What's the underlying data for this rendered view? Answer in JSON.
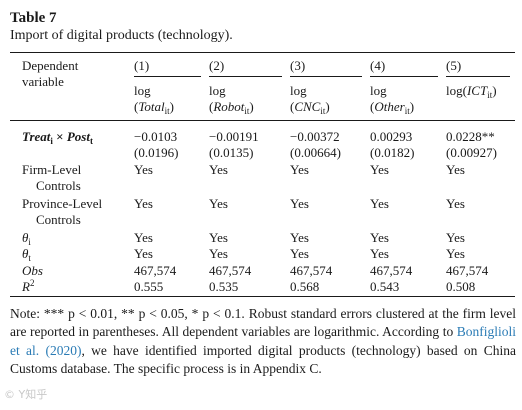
{
  "table": {
    "number": "Table 7",
    "caption": "Import of digital products (technology).",
    "stub_header": [
      "Dependent",
      "variable"
    ],
    "columns": [
      {
        "num": "(1)",
        "dv_log": "log",
        "dv_var": "Total",
        "dv_sub": "it"
      },
      {
        "num": "(2)",
        "dv_log": "log",
        "dv_var": "Robot",
        "dv_sub": "it"
      },
      {
        "num": "(3)",
        "dv_log": "log",
        "dv_var": "CNC",
        "dv_sub": "it"
      },
      {
        "num": "(4)",
        "dv_log": "log",
        "dv_var": "Other",
        "dv_sub": "it"
      },
      {
        "num": "(5)",
        "dv_log": "log",
        "dv_var": "ICT",
        "dv_sub": "it"
      }
    ],
    "rows": {
      "treat_post": {
        "label": {
          "a": "Treat",
          "a_sub": "i",
          "times": " × ",
          "b": "Post",
          "b_sub": "t"
        },
        "values": [
          "−0.0103",
          "−0.00191",
          "−0.00372",
          "0.00293",
          "0.0228**"
        ],
        "se": [
          "(0.0196)",
          "(0.0135)",
          "(0.00664)",
          "(0.0182)",
          "(0.00927)"
        ]
      },
      "firm_controls": {
        "label": [
          "Firm-Level",
          "Controls"
        ],
        "values": [
          "Yes",
          "Yes",
          "Yes",
          "Yes",
          "Yes"
        ]
      },
      "province_controls": {
        "label": [
          "Province-Level",
          "Controls"
        ],
        "values": [
          "Yes",
          "Yes",
          "Yes",
          "Yes",
          "Yes"
        ]
      },
      "theta_i": {
        "label": "θ",
        "sub": "i",
        "values": [
          "Yes",
          "Yes",
          "Yes",
          "Yes",
          "Yes"
        ]
      },
      "theta_t": {
        "label": "θ",
        "sub": "t",
        "values": [
          "Yes",
          "Yes",
          "Yes",
          "Yes",
          "Yes"
        ]
      },
      "obs": {
        "label": "Obs",
        "values": [
          "467,574",
          "467,574",
          "467,574",
          "467,574",
          "467,574"
        ]
      },
      "r2": {
        "label": "R",
        "sup": "2",
        "values": [
          "0.555",
          "0.535",
          "0.568",
          "0.543",
          "0.508"
        ]
      }
    }
  },
  "note": {
    "part1": "Note: *** p < 0.01, ** p < 0.05, * p < 0.1. Robust standard errors clustered at the firm level are reported in parentheses. All dependent variables are logarithmic. According to ",
    "link": "Bonfiglioli et al. (2020)",
    "part2": ", we have identified imported digital products (technology) based on China Customs database. The specific process is in Appendix C.",
    "link_color": "#2a7bb5"
  },
  "watermark": "© Y知乎"
}
